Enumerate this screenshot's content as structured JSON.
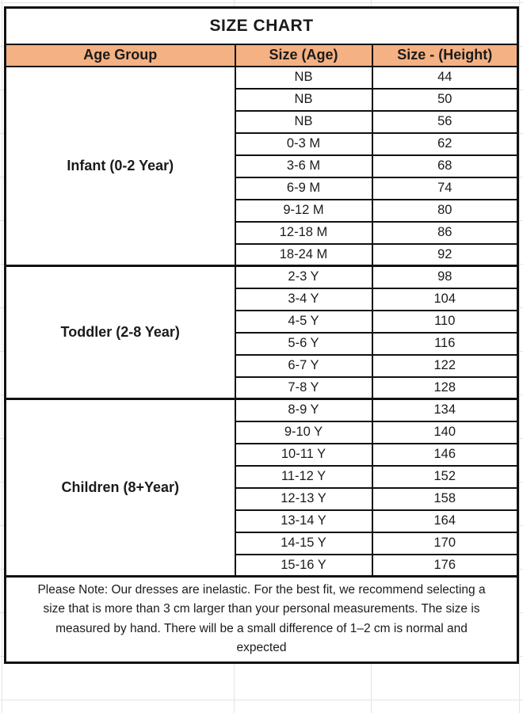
{
  "chart_data": {
    "type": "table",
    "title": "SIZE CHART",
    "columns": [
      "Age Group",
      "Size (Age)",
      "Size - (Height)"
    ],
    "groups": [
      {
        "label": "Infant (0-2 Year)",
        "rows": [
          [
            "NB",
            "44"
          ],
          [
            "NB",
            "50"
          ],
          [
            "NB",
            "56"
          ],
          [
            "0-3 M",
            "62"
          ],
          [
            "3-6 M",
            "68"
          ],
          [
            "6-9 M",
            "74"
          ],
          [
            "9-12 M",
            "80"
          ],
          [
            "12-18 M",
            "86"
          ],
          [
            "18-24 M",
            "92"
          ]
        ]
      },
      {
        "label": "Toddler (2-8 Year)",
        "rows": [
          [
            "2-3 Y",
            "98"
          ],
          [
            "3-4 Y",
            "104"
          ],
          [
            "4-5 Y",
            "110"
          ],
          [
            "5-6 Y",
            "116"
          ],
          [
            "6-7 Y",
            "122"
          ],
          [
            "7-8 Y",
            "128"
          ]
        ]
      },
      {
        "label": "Children (8+Year)",
        "rows": [
          [
            "8-9 Y",
            "134"
          ],
          [
            "9-10 Y",
            "140"
          ],
          [
            "10-11 Y",
            "146"
          ],
          [
            "11-12 Y",
            "152"
          ],
          [
            "12-13 Y",
            "158"
          ],
          [
            "13-14 Y",
            "164"
          ],
          [
            "14-15 Y",
            "170"
          ],
          [
            "15-16 Y",
            "176"
          ]
        ]
      }
    ],
    "note": "Please Note: Our dresses are inelastic. For the best fit, we recommend selecting a size that is more than 3 cm larger than your personal measurements. The size is measured by hand. There will be a small difference of 1–2 cm is normal and expected"
  },
  "colors": {
    "header_bg": "#F4B183",
    "border": "#111111",
    "text": "#1b1b1b",
    "gridline": "#e4e4e4"
  }
}
